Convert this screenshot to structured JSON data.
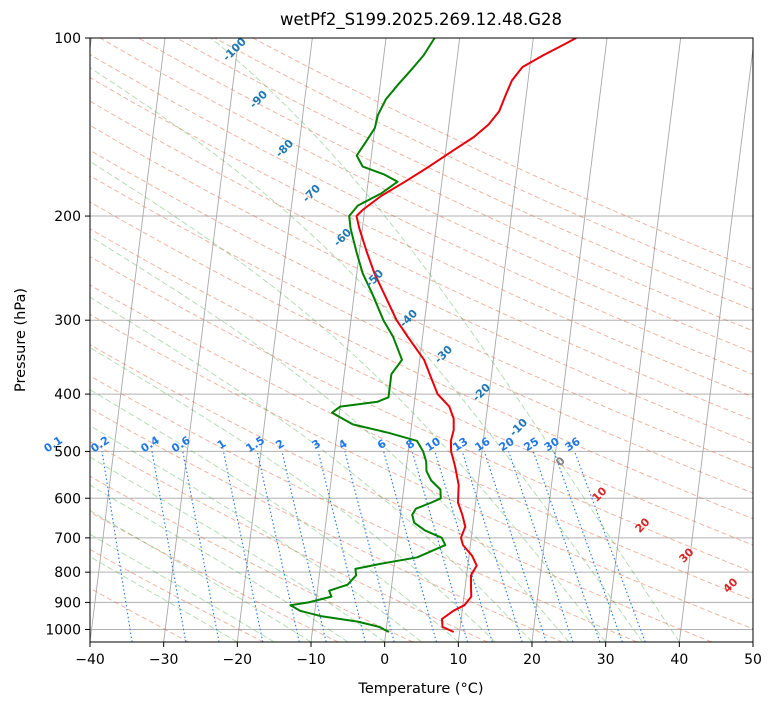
{
  "chart_data": {
    "type": "line",
    "title": "wetPf2_S199.2025.269.12.48.G28",
    "xlabel": "Temperature (°C)",
    "ylabel": "Pressure (hPa)",
    "xlim": [
      -40,
      50
    ],
    "ylim": [
      1050,
      100
    ],
    "x_ticks": [
      "−40",
      "−30",
      "−20",
      "−10",
      "0",
      "10",
      "20",
      "30",
      "40",
      "50"
    ],
    "y_ticks": [
      "100",
      "200",
      "300",
      "400",
      "500",
      "600",
      "700",
      "800",
      "900",
      "1000"
    ],
    "grid": true,
    "series": [
      {
        "name": "Temperature",
        "color": "#e8000b",
        "points": [
          [
            9.2,
            1010
          ],
          [
            7.6,
            990
          ],
          [
            7.4,
            960
          ],
          [
            8.8,
            930
          ],
          [
            10.2,
            910
          ],
          [
            11,
            880
          ],
          [
            10.8,
            850
          ],
          [
            10.6,
            810
          ],
          [
            11.2,
            780
          ],
          [
            10.4,
            750
          ],
          [
            9.0,
            720
          ],
          [
            8.6,
            700
          ],
          [
            9.0,
            670
          ],
          [
            8.4,
            640
          ],
          [
            7.6,
            610
          ],
          [
            7.4,
            570
          ],
          [
            6.6,
            530
          ],
          [
            5.8,
            500
          ],
          [
            5.6,
            480
          ],
          [
            5.8,
            460
          ],
          [
            5.6,
            440
          ],
          [
            4.8,
            420
          ],
          [
            3.0,
            400
          ],
          [
            1.6,
            370
          ],
          [
            0.6,
            350
          ],
          [
            -2.0,
            320
          ],
          [
            -3.8,
            300
          ],
          [
            -6.0,
            270
          ],
          [
            -7.6,
            250
          ],
          [
            -9.0,
            230
          ],
          [
            -10.4,
            210
          ],
          [
            -11.0,
            200
          ],
          [
            -10.2,
            195
          ],
          [
            -8.0,
            185
          ],
          [
            -5.0,
            175
          ],
          [
            -2.0,
            165
          ],
          [
            1.0,
            155
          ],
          [
            3.6,
            147
          ],
          [
            5.4,
            140
          ],
          [
            6.6,
            133
          ],
          [
            7.2,
            125
          ],
          [
            7.8,
            118
          ],
          [
            9.0,
            112
          ],
          [
            11.6,
            107
          ],
          [
            14.0,
            103
          ],
          [
            15.8,
            100
          ]
        ]
      },
      {
        "name": "Dewpoint",
        "color": "#008000",
        "points": [
          [
            0.4,
            1010
          ],
          [
            -1.0,
            990
          ],
          [
            -4.0,
            970
          ],
          [
            -9.0,
            950
          ],
          [
            -12.0,
            930
          ],
          [
            -13.4,
            910
          ],
          [
            -11.0,
            900
          ],
          [
            -8.0,
            880
          ],
          [
            -8.4,
            860
          ],
          [
            -6.0,
            840
          ],
          [
            -5.0,
            810
          ],
          [
            -5.2,
            790
          ],
          [
            -2.0,
            775
          ],
          [
            3.0,
            755
          ],
          [
            6.6,
            720
          ],
          [
            6.0,
            700
          ],
          [
            3.6,
            680
          ],
          [
            2.0,
            660
          ],
          [
            1.6,
            640
          ],
          [
            2.0,
            625
          ],
          [
            4.0,
            610
          ],
          [
            5.2,
            600
          ],
          [
            5.0,
            580
          ],
          [
            3.6,
            560
          ],
          [
            2.8,
            540
          ],
          [
            2.6,
            520
          ],
          [
            2.0,
            500
          ],
          [
            1.0,
            480
          ],
          [
            -3.0,
            465
          ],
          [
            -8.0,
            450
          ],
          [
            -11.0,
            430
          ],
          [
            -10.0,
            420
          ],
          [
            -5.0,
            412
          ],
          [
            -3.6,
            405
          ],
          [
            -3.6,
            390
          ],
          [
            -3.6,
            370
          ],
          [
            -2.4,
            350
          ],
          [
            -4.0,
            320
          ],
          [
            -5.6,
            300
          ],
          [
            -7.6,
            270
          ],
          [
            -9.2,
            250
          ],
          [
            -10.4,
            230
          ],
          [
            -11.6,
            210
          ],
          [
            -12.0,
            200
          ],
          [
            -11.0,
            192
          ],
          [
            -8.0,
            183
          ],
          [
            -6.0,
            175
          ],
          [
            -8.0,
            170
          ],
          [
            -11.0,
            165
          ],
          [
            -12.0,
            158
          ],
          [
            -11.0,
            150
          ],
          [
            -10.0,
            142
          ],
          [
            -9.8,
            135
          ],
          [
            -9.0,
            127
          ],
          [
            -7.6,
            120
          ],
          [
            -6.0,
            113
          ],
          [
            -4.6,
            107
          ],
          [
            -3.4,
            100
          ]
        ]
      }
    ],
    "annotations": {
      "dry_adiabat_labels": [
        "-100",
        "-90",
        "-80",
        "-70",
        "-60",
        "-50",
        "-40",
        "-30",
        "-20",
        "-10",
        "0",
        "10",
        "20",
        "30",
        "40"
      ],
      "mixing_ratio_labels": [
        "0.1",
        "0.2",
        "0.4",
        "0.6",
        "1",
        "1.5",
        "2",
        "3",
        "4",
        "6",
        "8",
        "10",
        "13",
        "16",
        "20",
        "25",
        "30",
        "36"
      ],
      "mixing_ratio_values": [
        0.1,
        0.2,
        0.4,
        0.6,
        1,
        1.5,
        2,
        3,
        4,
        6,
        8,
        10,
        13,
        16,
        20,
        25,
        30,
        36
      ],
      "dry_adiabat_color": "#e05a30",
      "moist_adiabat_color": "#2ca02c",
      "mixing_ratio_color": "#1f77e8",
      "isotherm_color": "#808080",
      "label_blue": "#1f77b4",
      "label_red": "#d62728"
    }
  }
}
